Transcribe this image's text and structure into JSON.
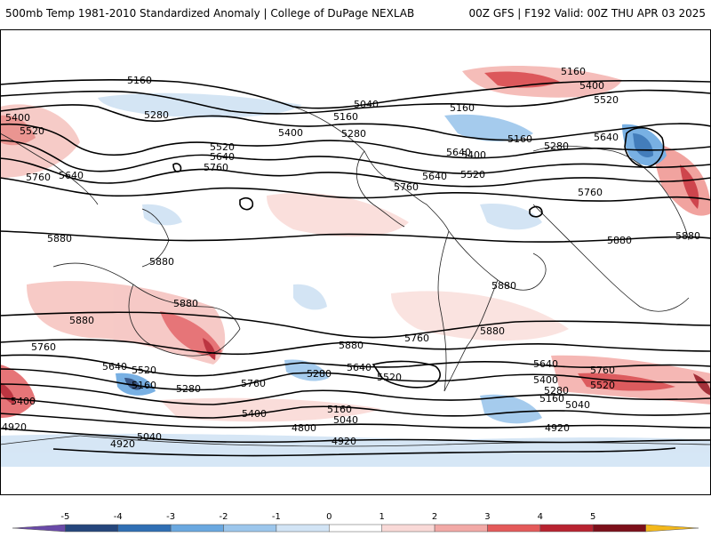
{
  "header": {
    "title": "500mb Temp 1981-2010 Standardized Anomaly | College of DuPage NEXLAB",
    "run_info": "00Z GFS | F192 Valid: 00Z THU APR 03 2025"
  },
  "colorbar": {
    "ticks": [
      "-5",
      "-4",
      "-3",
      "-2",
      "-1",
      "0",
      "1",
      "2",
      "3",
      "4",
      "5"
    ],
    "colors": [
      "#6a4aa8",
      "#25467c",
      "#2f6fb4",
      "#6aa8e0",
      "#9cc6ec",
      "#d2e4f5",
      "#ffffff",
      "#f9d9d7",
      "#f2a9a6",
      "#e45a5a",
      "#b82330",
      "#7c0f1a",
      "#f3b81b"
    ]
  },
  "contour_labels": [
    "5160",
    "5400",
    "5520",
    "5280",
    "5640",
    "5760",
    "5880",
    "5040",
    "4920",
    "4800"
  ],
  "map_labels": [
    {
      "text": "5160"
    },
    {
      "text": "5400"
    },
    {
      "text": "5520"
    },
    {
      "text": "5280"
    },
    {
      "text": "5160"
    },
    {
      "text": "5040"
    },
    {
      "text": "5400"
    },
    {
      "text": "5280"
    },
    {
      "text": "5520"
    },
    {
      "text": "5640"
    },
    {
      "text": "5760"
    },
    {
      "text": "5760"
    },
    {
      "text": "5640"
    },
    {
      "text": "5880"
    },
    {
      "text": "5880"
    },
    {
      "text": "5880"
    },
    {
      "text": "5880"
    },
    {
      "text": "5760"
    },
    {
      "text": "5640"
    },
    {
      "text": "5520"
    },
    {
      "text": "5160"
    },
    {
      "text": "5400"
    },
    {
      "text": "5280"
    },
    {
      "text": "5760"
    },
    {
      "text": "5400"
    },
    {
      "text": "5040"
    },
    {
      "text": "4920"
    },
    {
      "text": "4920"
    },
    {
      "text": "5280"
    },
    {
      "text": "5160"
    },
    {
      "text": "5040"
    },
    {
      "text": "4800"
    },
    {
      "text": "4920"
    },
    {
      "text": "5880"
    },
    {
      "text": "5760"
    },
    {
      "text": "5640"
    },
    {
      "text": "5520"
    },
    {
      "text": "5160"
    },
    {
      "text": "5640"
    },
    {
      "text": "5760"
    },
    {
      "text": "5520"
    },
    {
      "text": "5880"
    },
    {
      "text": "5880"
    },
    {
      "text": "5640"
    },
    {
      "text": "5400"
    },
    {
      "text": "5280"
    },
    {
      "text": "5160"
    },
    {
      "text": "5040"
    },
    {
      "text": "4920"
    },
    {
      "text": "5160"
    },
    {
      "text": "5400"
    },
    {
      "text": "5520"
    },
    {
      "text": "5640"
    },
    {
      "text": "5160"
    },
    {
      "text": "5280"
    },
    {
      "text": "5760"
    },
    {
      "text": "5880"
    },
    {
      "text": "5880"
    },
    {
      "text": "5640"
    },
    {
      "text": "5520"
    },
    {
      "text": "5400"
    },
    {
      "text": "5760"
    }
  ]
}
